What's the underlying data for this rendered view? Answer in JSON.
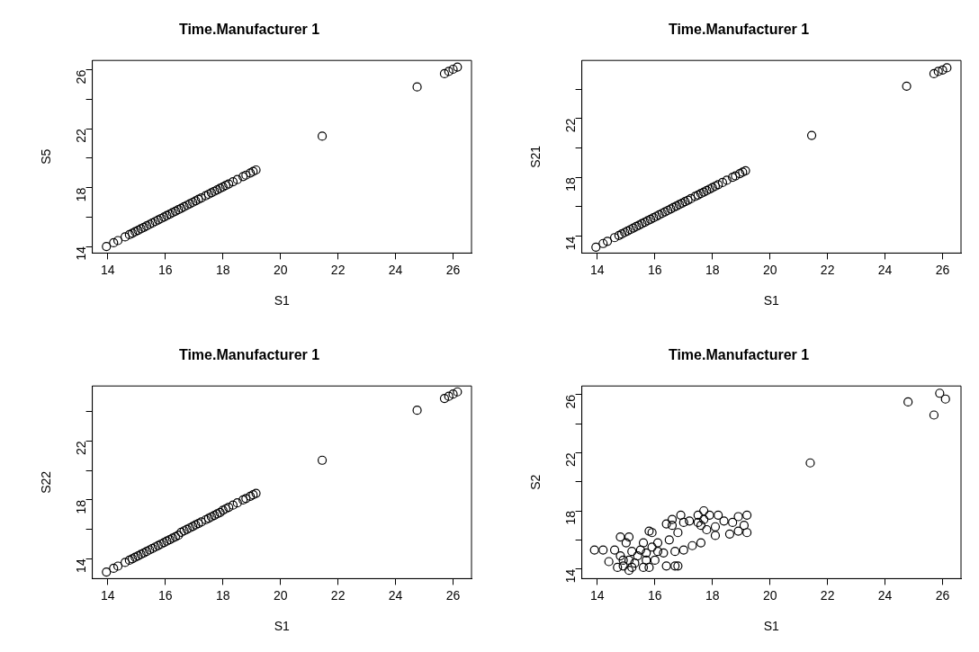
{
  "chart_data": [
    {
      "type": "scatter",
      "title": "Time.Manufacturer 1",
      "xlabel": "S1",
      "ylabel": "S5",
      "marker": "circle",
      "color": "#000000",
      "xlim": [
        13.46,
        26.64
      ],
      "xticks": [
        14,
        16,
        18,
        20,
        22,
        24,
        26
      ],
      "ylim": [
        13.55,
        26.65
      ],
      "yticks": [
        14,
        {
          "value": 16,
          "label": null
        },
        18,
        {
          "value": 20,
          "label": null
        },
        22,
        {
          "value": 24,
          "label": null
        },
        26
      ],
      "x": [
        13.95,
        14.2,
        14.35,
        14.6,
        14.75,
        14.85,
        14.95,
        15.05,
        15.15,
        15.25,
        15.35,
        15.45,
        15.55,
        15.65,
        15.75,
        15.85,
        15.95,
        16.05,
        16.15,
        16.25,
        16.35,
        16.45,
        16.55,
        16.65,
        16.75,
        16.85,
        16.95,
        17.05,
        17.15,
        17.25,
        17.4,
        17.5,
        17.6,
        17.7,
        17.8,
        17.9,
        18.0,
        18.1,
        18.2,
        18.35,
        18.5,
        18.7,
        18.8,
        18.95,
        19.05,
        19.15,
        21.45,
        24.75,
        25.7,
        25.85,
        26.0,
        26.15
      ],
      "values": [
        14.0,
        14.25,
        14.4,
        14.65,
        14.8,
        14.9,
        15.0,
        15.1,
        15.2,
        15.3,
        15.4,
        15.5,
        15.6,
        15.7,
        15.8,
        15.9,
        16.0,
        16.1,
        16.2,
        16.3,
        16.4,
        16.5,
        16.6,
        16.7,
        16.8,
        16.9,
        17.0,
        17.1,
        17.2,
        17.3,
        17.45,
        17.55,
        17.65,
        17.75,
        17.85,
        17.95,
        18.05,
        18.15,
        18.25,
        18.4,
        18.55,
        18.75,
        18.85,
        19.0,
        19.1,
        19.2,
        21.5,
        24.85,
        25.75,
        25.9,
        26.05,
        26.2
      ]
    },
    {
      "type": "scatter",
      "title": "Time.Manufacturer 1",
      "xlabel": "S1",
      "ylabel": "S21",
      "marker": "circle",
      "color": "#000000",
      "xlim": [
        13.46,
        26.64
      ],
      "xticks": [
        14,
        16,
        18,
        20,
        22,
        24,
        26
      ],
      "ylim": [
        12.85,
        25.95
      ],
      "yticks": [
        14,
        {
          "value": 16,
          "label": null
        },
        18,
        {
          "value": 20,
          "label": null
        },
        22,
        {
          "value": 24,
          "label": null
        }
      ],
      "x": [
        13.95,
        14.2,
        14.35,
        14.6,
        14.75,
        14.85,
        14.95,
        15.05,
        15.15,
        15.25,
        15.35,
        15.45,
        15.55,
        15.65,
        15.75,
        15.85,
        15.95,
        16.05,
        16.15,
        16.25,
        16.35,
        16.45,
        16.55,
        16.65,
        16.75,
        16.85,
        16.95,
        17.05,
        17.15,
        17.25,
        17.4,
        17.5,
        17.6,
        17.7,
        17.8,
        17.9,
        18.0,
        18.1,
        18.2,
        18.35,
        18.5,
        18.7,
        18.8,
        18.95,
        19.05,
        19.15,
        21.45,
        24.75,
        25.7,
        25.85,
        26.0,
        26.15
      ],
      "values": [
        13.25,
        13.5,
        13.65,
        13.9,
        14.05,
        14.15,
        14.25,
        14.35,
        14.45,
        14.55,
        14.65,
        14.75,
        14.85,
        14.95,
        15.05,
        15.15,
        15.25,
        15.35,
        15.45,
        15.55,
        15.65,
        15.75,
        15.85,
        15.95,
        16.05,
        16.15,
        16.25,
        16.35,
        16.45,
        16.55,
        16.7,
        16.8,
        16.9,
        17.0,
        17.1,
        17.2,
        17.3,
        17.4,
        17.5,
        17.65,
        17.8,
        18.0,
        18.1,
        18.25,
        18.35,
        18.45,
        20.85,
        24.2,
        25.05,
        25.2,
        25.3,
        25.45
      ]
    },
    {
      "type": "scatter",
      "title": "Time.Manufacturer 1",
      "xlabel": "S1",
      "ylabel": "S22",
      "marker": "circle",
      "color": "#000000",
      "xlim": [
        13.46,
        26.64
      ],
      "xticks": [
        14,
        16,
        18,
        20,
        22,
        24,
        26
      ],
      "ylim": [
        12.65,
        25.75
      ],
      "yticks": [
        14,
        {
          "value": 16,
          "label": null
        },
        18,
        {
          "value": 20,
          "label": null
        },
        22,
        {
          "value": 24,
          "label": null
        }
      ],
      "x": [
        13.95,
        14.2,
        14.35,
        14.6,
        14.75,
        14.85,
        14.95,
        15.05,
        15.15,
        15.25,
        15.35,
        15.45,
        15.55,
        15.65,
        15.75,
        15.85,
        15.95,
        16.05,
        16.15,
        16.25,
        16.35,
        16.45,
        16.55,
        16.65,
        16.75,
        16.85,
        16.95,
        17.05,
        17.15,
        17.25,
        17.4,
        17.5,
        17.6,
        17.7,
        17.8,
        17.9,
        18.0,
        18.1,
        18.2,
        18.35,
        18.5,
        18.7,
        18.8,
        18.95,
        19.05,
        19.15,
        21.45,
        24.75,
        25.7,
        25.85,
        26.0,
        26.15
      ],
      "values": [
        13.1,
        13.35,
        13.5,
        13.75,
        13.9,
        14.0,
        14.1,
        14.2,
        14.3,
        14.4,
        14.5,
        14.6,
        14.7,
        14.8,
        14.9,
        15.0,
        15.1,
        15.2,
        15.3,
        15.4,
        15.5,
        15.6,
        15.8,
        15.9,
        16.0,
        16.1,
        16.2,
        16.3,
        16.4,
        16.5,
        16.65,
        16.75,
        16.85,
        16.95,
        17.05,
        17.15,
        17.3,
        17.4,
        17.5,
        17.65,
        17.8,
        18.0,
        18.1,
        18.25,
        18.35,
        18.45,
        20.7,
        24.1,
        24.9,
        25.05,
        25.2,
        25.35
      ]
    },
    {
      "type": "scatter",
      "title": "Time.Manufacturer 1",
      "xlabel": "S1",
      "ylabel": "S2",
      "marker": "circle",
      "color": "#000000",
      "xlim": [
        13.46,
        26.64
      ],
      "xticks": [
        14,
        16,
        18,
        20,
        22,
        24,
        26
      ],
      "ylim": [
        13.33,
        26.6
      ],
      "yticks": [
        14,
        {
          "value": 16,
          "label": null
        },
        18,
        {
          "value": 20,
          "label": null
        },
        22,
        {
          "value": 24,
          "label": null
        },
        26
      ],
      "x": [
        13.9,
        14.2,
        14.4,
        14.6,
        14.7,
        14.8,
        14.8,
        14.9,
        15.0,
        15.1,
        15.1,
        15.1,
        15.2,
        15.3,
        15.4,
        15.6,
        15.6,
        15.7,
        15.8,
        15.8,
        15.9,
        15.9,
        16.0,
        16.1,
        16.3,
        16.4,
        16.4,
        16.5,
        16.6,
        16.6,
        16.7,
        16.7,
        16.8,
        16.8,
        16.9,
        17.0,
        17.0,
        17.2,
        17.3,
        17.5,
        17.6,
        17.6,
        17.7,
        17.8,
        17.9,
        18.1,
        18.1,
        18.2,
        18.4,
        18.6,
        18.7,
        18.9,
        18.9,
        19.1,
        19.2,
        19.2,
        21.4,
        24.8,
        25.7,
        25.9,
        26.1,
        14.9,
        15.2,
        15.5,
        15.7,
        16.1,
        17.5,
        17.7
      ],
      "values": [
        15.3,
        15.3,
        14.5,
        15.3,
        14.1,
        16.2,
        14.9,
        14.2,
        15.8,
        16.2,
        13.9,
        14.6,
        15.2,
        14.4,
        14.9,
        15.8,
        14.1,
        15.1,
        16.6,
        14.1,
        16.5,
        15.5,
        14.6,
        15.8,
        15.1,
        17.1,
        14.2,
        16.0,
        17.0,
        17.4,
        14.2,
        15.2,
        16.5,
        14.2,
        17.7,
        15.3,
        17.2,
        17.3,
        15.6,
        17.7,
        15.8,
        17.0,
        18.0,
        16.7,
        17.7,
        16.9,
        16.3,
        17.7,
        17.3,
        16.4,
        17.2,
        17.6,
        16.6,
        17.0,
        17.7,
        16.5,
        21.3,
        25.5,
        24.6,
        26.1,
        25.7,
        14.6,
        14.1,
        15.3,
        14.6,
        15.2,
        17.2,
        17.4
      ]
    }
  ]
}
